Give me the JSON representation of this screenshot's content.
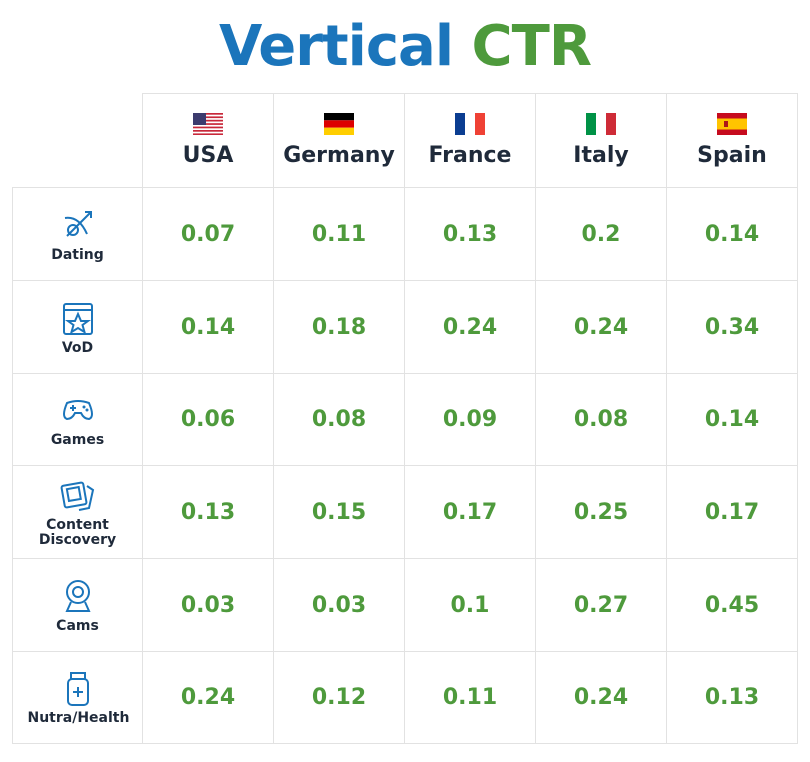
{
  "title": {
    "part1": "Vertical",
    "part2": "CTR"
  },
  "table": {
    "columns": [
      "USA",
      "Germany",
      "France",
      "Italy",
      "Spain"
    ],
    "rows": [
      {
        "label": "Dating",
        "values": [
          0.07,
          0.11,
          0.13,
          0.2,
          0.14
        ]
      },
      {
        "label": "VoD",
        "values": [
          0.14,
          0.18,
          0.24,
          0.24,
          0.34
        ]
      },
      {
        "label": "Games",
        "values": [
          0.06,
          0.08,
          0.09,
          0.08,
          0.14
        ]
      },
      {
        "label": "Content Discovery",
        "values": [
          0.13,
          0.15,
          0.17,
          0.25,
          0.17
        ]
      },
      {
        "label": "Cams",
        "values": [
          0.03,
          0.03,
          0.1,
          0.27,
          0.45
        ]
      },
      {
        "label": "Nutra/Health",
        "values": [
          0.24,
          0.12,
          0.11,
          0.24,
          0.13
        ]
      }
    ]
  }
}
